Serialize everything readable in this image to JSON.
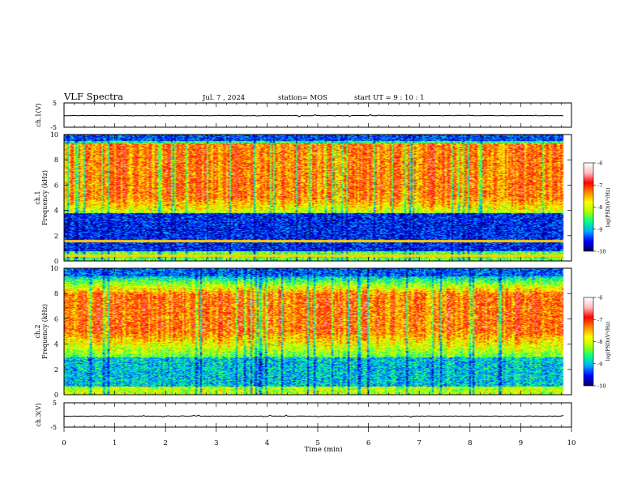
{
  "header": {
    "title": "VLF Spectra",
    "date": "Jul. 7 , 2024",
    "station": "station= MOS",
    "start_ut": "start UT =  9 : 10 : 1"
  },
  "chart_data": [
    {
      "type": "line",
      "panel": "ch1_waveform",
      "ylabel": "ch.1(V)",
      "ylim": [
        -5,
        5
      ],
      "y_ticks": [
        "5",
        "-5"
      ],
      "x_range_min": [
        0,
        9.85
      ],
      "y_level": -0.2,
      "color": "#000000"
    },
    {
      "type": "heatmap",
      "panel": "ch1_spectrogram",
      "ylabel": "ch.1",
      "ylabel2": "Frequency (kHz)",
      "ylim": [
        0,
        10
      ],
      "y_ticks": [
        "0",
        "2",
        "4",
        "6",
        "8",
        "10"
      ],
      "x_range_min": [
        0,
        9.85
      ],
      "intensity_band_khz": {
        "low": 3.8,
        "high": 9.3
      },
      "quiet_band_khz": {
        "low": 0.8,
        "high": 3.5
      },
      "steady_lines_khz": [
        0.45,
        1.6
      ],
      "colorbar": {
        "label": "log(PSD)(V²/Hz)",
        "min": -10,
        "max": -6,
        "ticks": [
          "-6",
          "-7",
          "-8",
          "-9",
          "-10"
        ],
        "colors": [
          "#000066",
          "#0000ff",
          "#00aaff",
          "#00ff88",
          "#aaff00",
          "#ffff00",
          "#ff8800",
          "#ff0000",
          "#ffbbbb",
          "#ffffff"
        ]
      }
    },
    {
      "type": "heatmap",
      "panel": "ch2_spectrogram",
      "ylabel": "ch.2",
      "ylabel2": "Frequency (kHz)",
      "ylim": [
        0,
        10
      ],
      "y_ticks": [
        "0",
        "2",
        "4",
        "6",
        "8",
        "10"
      ],
      "x_range_min": [
        0,
        9.85
      ],
      "intensity_band_khz": {
        "low": 5.0,
        "high": 8.0
      },
      "colorbar": {
        "label": "log(PSD)(V²/Hz)",
        "min": -10,
        "max": -6,
        "ticks": [
          "-6",
          "-7",
          "-8",
          "-9",
          "-10"
        ],
        "colors": [
          "#000066",
          "#0000ff",
          "#00aaff",
          "#00ff88",
          "#aaff00",
          "#ffff00",
          "#ff8800",
          "#ff0000",
          "#ffbbbb",
          "#ffffff"
        ]
      }
    },
    {
      "type": "line",
      "panel": "ch3_waveform",
      "ylabel": "ch.3(V)",
      "ylim": [
        -5,
        5
      ],
      "y_ticks": [
        "5",
        "-5"
      ],
      "x_range_min": [
        0,
        9.85
      ],
      "y_level": -0.5,
      "color": "#000000"
    }
  ],
  "x_axis": {
    "label": "Time (min)",
    "ticks": [
      "0",
      "1",
      "2",
      "3",
      "4",
      "5",
      "6",
      "7",
      "8",
      "9",
      "10"
    ],
    "range": [
      0,
      10
    ]
  }
}
